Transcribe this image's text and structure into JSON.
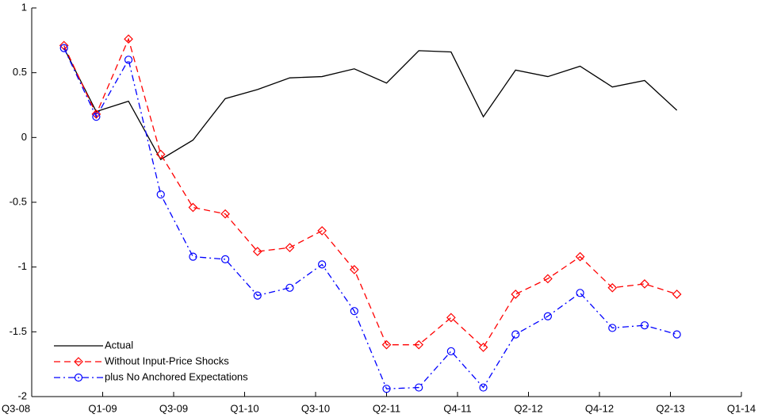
{
  "chart_data": {
    "type": "line",
    "x": [
      1,
      2,
      3,
      4,
      5,
      6,
      7,
      8,
      9,
      10,
      11,
      12,
      13,
      14,
      15,
      16,
      17,
      18,
      19,
      20
    ],
    "xlim": [
      0,
      22
    ],
    "xticks": [
      {
        "value": 0,
        "label": "Q3-08"
      },
      {
        "value": 2.2,
        "label": "Q1-09"
      },
      {
        "value": 4.4,
        "label": "Q3-09"
      },
      {
        "value": 6.6,
        "label": "Q1-10"
      },
      {
        "value": 8.8,
        "label": "Q3-10"
      },
      {
        "value": 11,
        "label": "Q2-11"
      },
      {
        "value": 13.2,
        "label": "Q4-11"
      },
      {
        "value": 15.4,
        "label": "Q2-12"
      },
      {
        "value": 17.6,
        "label": "Q4-12"
      },
      {
        "value": 19.8,
        "label": "Q2-13"
      },
      {
        "value": 22,
        "label": "Q1-14"
      }
    ],
    "ylim": [
      -2,
      1
    ],
    "yticks": [
      -2,
      -1.5,
      -1,
      -0.5,
      0,
      0.5,
      1
    ],
    "legend": "lower left",
    "series": [
      {
        "name": "Actual",
        "color": "#000000",
        "style": "solid",
        "marker": "none",
        "values": [
          0.69,
          0.2,
          0.28,
          -0.17,
          -0.02,
          0.3,
          0.37,
          0.46,
          0.47,
          0.53,
          0.42,
          0.67,
          0.66,
          0.16,
          0.52,
          0.47,
          0.55,
          0.39,
          0.44,
          0.21
        ]
      },
      {
        "name": "Without Input-Price Shocks",
        "color": "#ff0000",
        "style": "dashed",
        "marker": "diamond",
        "values": [
          0.71,
          0.18,
          0.76,
          -0.13,
          -0.54,
          -0.59,
          -0.88,
          -0.85,
          -0.72,
          -1.02,
          -1.6,
          -1.6,
          -1.39,
          -1.62,
          -1.21,
          -1.09,
          -0.92,
          -1.16,
          -1.13,
          -1.21
        ]
      },
      {
        "name": "plus No Anchored Expectations",
        "color": "#0000ff",
        "style": "dashdot",
        "marker": "circle",
        "values": [
          0.69,
          0.16,
          0.6,
          -0.44,
          -0.92,
          -0.94,
          -1.22,
          -1.16,
          -0.98,
          -1.34,
          -1.94,
          -1.93,
          -1.65,
          -1.93,
          -1.52,
          -1.38,
          -1.2,
          -1.47,
          -1.45,
          -1.52
        ]
      }
    ]
  }
}
